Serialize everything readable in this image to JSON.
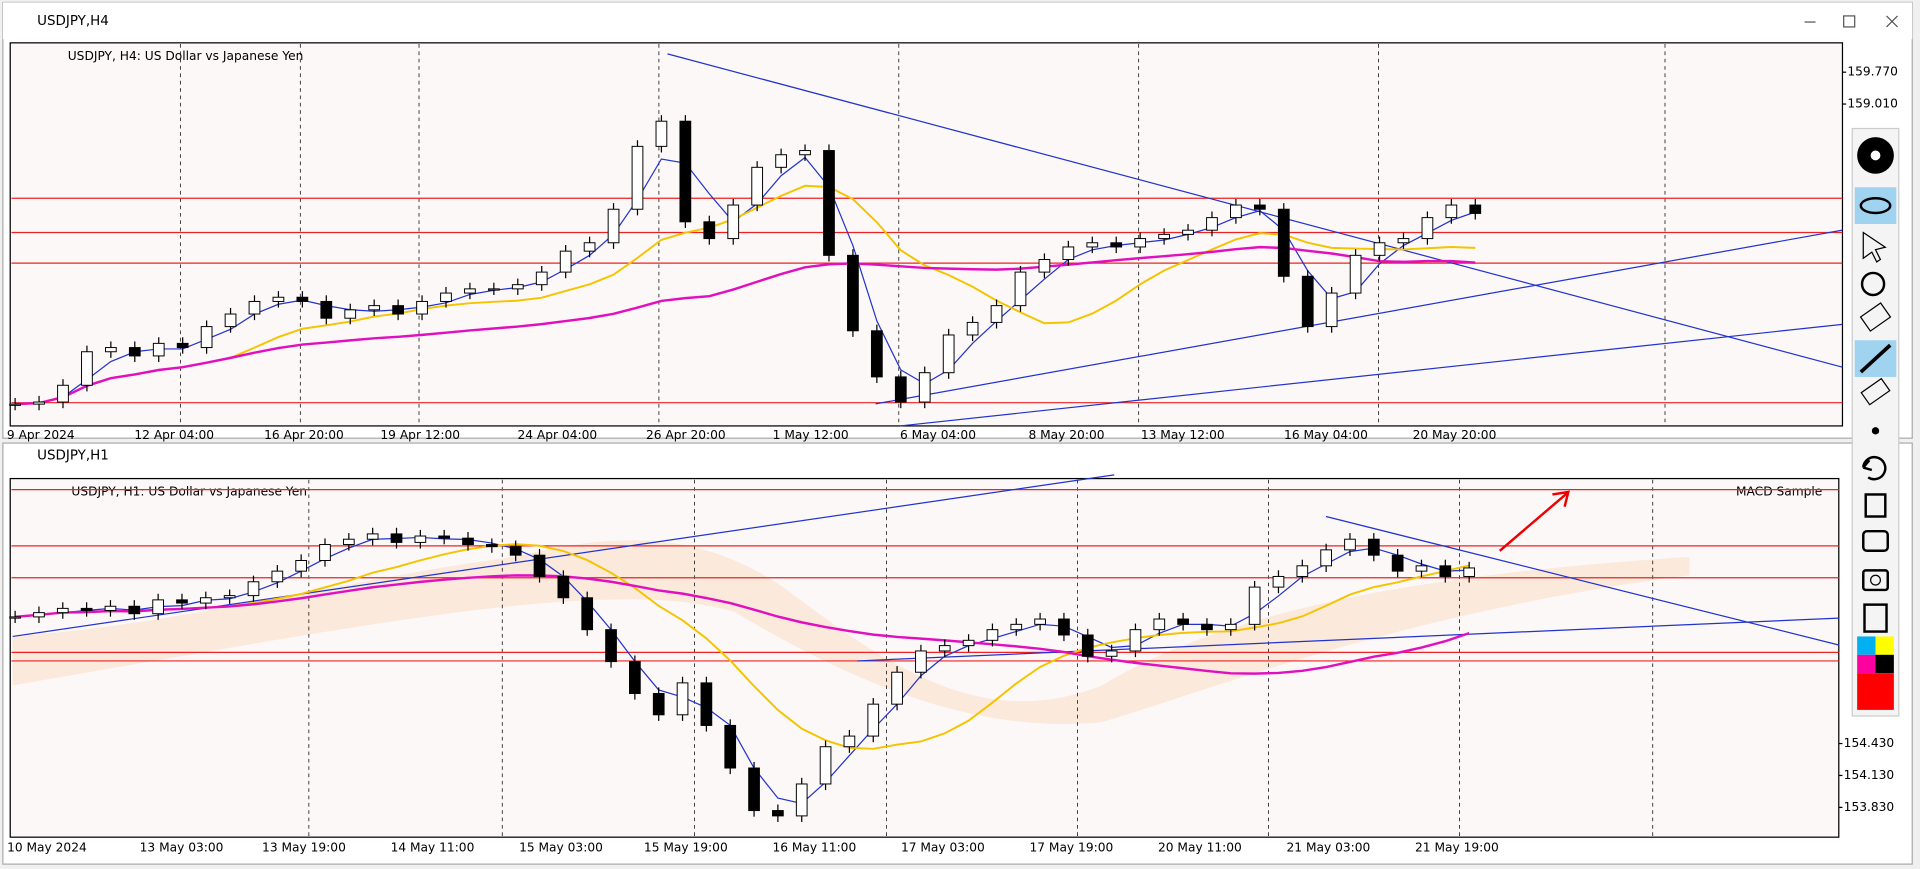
{
  "windows": [
    {
      "title": "USDJPY,H4",
      "chart_label": "USDJPY, H4:  US Dollar vs Japanese Yen",
      "ylim": [
        151.33,
        160.47
      ],
      "price_labels": [
        {
          "value": 159.77,
          "label": "159.770"
        },
        {
          "value": 159.01,
          "label": "159.010"
        }
      ],
      "time_labels": [
        "9 Apr 2024",
        "12 Apr 04:00",
        "16 Apr 20:00",
        "19 Apr 12:00",
        "24 Apr 04:00",
        "26 Apr 20:00",
        "1 May 12:00",
        "6 May 04:00",
        "8 May 20:00",
        "13 May 12:00",
        "16 May 04:00",
        "20 May 20:00"
      ],
      "closes": [
        151.85,
        151.9,
        152.3,
        153.1,
        153.2,
        153.0,
        153.3,
        153.2,
        153.7,
        154.0,
        154.3,
        154.4,
        154.3,
        153.9,
        154.1,
        154.2,
        154.0,
        154.3,
        154.5,
        154.6,
        154.6,
        154.7,
        155.0,
        155.5,
        155.7,
        156.5,
        158.0,
        158.6,
        156.2,
        155.8,
        156.6,
        157.5,
        157.8,
        157.9,
        155.4,
        153.6,
        152.5,
        151.9,
        152.6,
        153.5,
        153.8,
        154.2,
        155.0,
        155.3,
        155.6,
        155.7,
        155.6,
        155.8,
        155.9,
        156.0,
        156.3,
        156.6,
        156.5,
        154.9,
        153.7,
        154.5,
        155.4,
        155.7,
        155.8,
        156.3,
        156.6,
        156.4
      ]
    },
    {
      "title": "USDJPY,H1",
      "chart_label": "USDJPY, H1:  US Dollar vs Japanese Yen",
      "indicator_label": "MACD Sample",
      "ylim": [
        153.55,
        156.92
      ],
      "price_labels": [
        {
          "value": 154.43,
          "label": "154.430"
        },
        {
          "value": 154.13,
          "label": "154.130"
        },
        {
          "value": 153.83,
          "label": "153.830"
        }
      ],
      "time_labels": [
        "10 May 2024",
        "13 May 03:00",
        "13 May 19:00",
        "14 May 11:00",
        "15 May 03:00",
        "15 May 19:00",
        "16 May 11:00",
        "17 May 03:00",
        "17 May 19:00",
        "20 May 11:00",
        "21 May 03:00",
        "21 May 19:00"
      ],
      "closes": [
        155.62,
        155.66,
        155.7,
        155.68,
        155.72,
        155.65,
        155.78,
        155.75,
        155.8,
        155.82,
        155.95,
        156.05,
        156.15,
        156.3,
        156.35,
        156.4,
        156.32,
        156.38,
        156.36,
        156.3,
        156.28,
        156.2,
        156.0,
        155.8,
        155.5,
        155.2,
        154.9,
        154.7,
        155.0,
        154.6,
        154.2,
        153.8,
        153.75,
        154.05,
        154.4,
        154.5,
        154.8,
        155.1,
        155.3,
        155.35,
        155.4,
        155.5,
        155.55,
        155.6,
        155.45,
        155.25,
        155.3,
        155.5,
        155.6,
        155.55,
        155.5,
        155.55,
        155.9,
        156.0,
        156.1,
        156.25,
        156.35,
        156.2,
        156.05,
        156.1,
        156.0,
        156.08
      ]
    }
  ]
}
